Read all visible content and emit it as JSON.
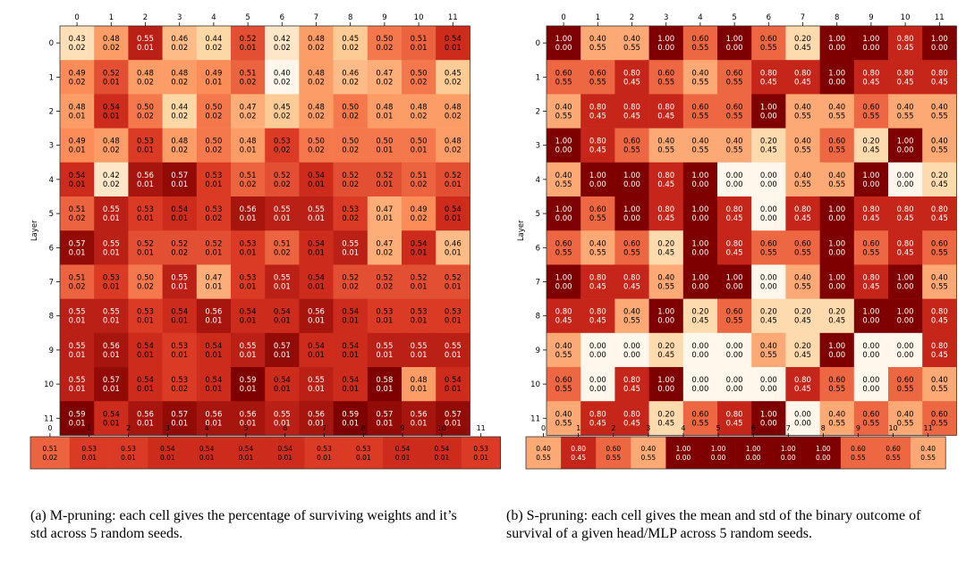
{
  "captions": {
    "a": "(a) M-pruning: each cell gives the percentage of surviving weights and it’s std across 5 random seeds.",
    "b": "(b) S-pruning: each cell gives the mean and std of the binary outcome of survival of a given head/MLP across 5 random seeds."
  },
  "chart_data": [
    {
      "type": "heatmap",
      "panel": "a",
      "ylabel": "Layer",
      "x_ticks": [
        "0",
        "1",
        "2",
        "3",
        "4",
        "5",
        "6",
        "7",
        "8",
        "9",
        "10",
        "11"
      ],
      "y_ticks": [
        "0",
        "1",
        "2",
        "3",
        "4",
        "5",
        "6",
        "7",
        "8",
        "9",
        "10",
        "11"
      ],
      "color_range": [
        0.4,
        0.58
      ],
      "mean": [
        [
          0.43,
          0.48,
          0.55,
          0.46,
          0.44,
          0.52,
          0.42,
          0.48,
          0.45,
          0.5,
          0.51,
          0.54
        ],
        [
          0.49,
          0.52,
          0.48,
          0.48,
          0.49,
          0.51,
          0.4,
          0.48,
          0.46,
          0.47,
          0.5,
          0.45
        ],
        [
          0.48,
          0.54,
          0.5,
          0.44,
          0.5,
          0.47,
          0.45,
          0.48,
          0.5,
          0.48,
          0.48,
          0.48
        ],
        [
          0.49,
          0.48,
          0.53,
          0.48,
          0.5,
          0.48,
          0.53,
          0.5,
          0.5,
          0.5,
          0.5,
          0.48
        ],
        [
          0.54,
          0.42,
          0.56,
          0.57,
          0.53,
          0.51,
          0.52,
          0.54,
          0.52,
          0.52,
          0.51,
          0.52
        ],
        [
          0.51,
          0.55,
          0.53,
          0.54,
          0.53,
          0.56,
          0.55,
          0.55,
          0.53,
          0.47,
          0.49,
          0.54
        ],
        [
          0.57,
          0.55,
          0.52,
          0.52,
          0.52,
          0.53,
          0.51,
          0.54,
          0.55,
          0.47,
          0.54,
          0.46
        ],
        [
          0.51,
          0.53,
          0.5,
          0.55,
          0.47,
          0.53,
          0.55,
          0.54,
          0.52,
          0.52,
          0.52,
          0.52
        ],
        [
          0.55,
          0.55,
          0.53,
          0.54,
          0.56,
          0.54,
          0.54,
          0.56,
          0.54,
          0.53,
          0.53,
          0.53
        ],
        [
          0.55,
          0.56,
          0.54,
          0.53,
          0.54,
          0.55,
          0.57,
          0.54,
          0.54,
          0.55,
          0.55,
          0.55
        ],
        [
          0.55,
          0.57,
          0.54,
          0.53,
          0.54,
          0.59,
          0.54,
          0.55,
          0.54,
          0.58,
          0.48,
          0.54
        ],
        [
          0.59,
          0.54,
          0.56,
          0.57,
          0.56,
          0.56,
          0.55,
          0.56,
          0.59,
          0.57,
          0.56,
          0.57
        ]
      ],
      "std": [
        [
          0.02,
          0.02,
          0.01,
          0.02,
          0.02,
          0.01,
          0.02,
          0.02,
          0.02,
          0.02,
          0.01,
          0.01
        ],
        [
          0.02,
          0.01,
          0.02,
          0.02,
          0.01,
          0.02,
          0.02,
          0.02,
          0.02,
          0.02,
          0.02,
          0.02
        ],
        [
          0.01,
          0.01,
          0.02,
          0.02,
          0.02,
          0.02,
          0.02,
          0.02,
          0.02,
          0.01,
          0.02,
          0.02
        ],
        [
          0.01,
          0.02,
          0.01,
          0.02,
          0.02,
          0.01,
          0.02,
          0.02,
          0.02,
          0.01,
          0.01,
          0.02
        ],
        [
          0.01,
          0.02,
          0.01,
          0.01,
          0.01,
          0.02,
          0.02,
          0.01,
          0.02,
          0.01,
          0.02,
          0.01
        ],
        [
          0.02,
          0.01,
          0.01,
          0.01,
          0.02,
          0.01,
          0.01,
          0.01,
          0.02,
          0.01,
          0.02,
          0.01
        ],
        [
          0.01,
          0.01,
          0.01,
          0.02,
          0.01,
          0.01,
          0.02,
          0.01,
          0.01,
          0.02,
          0.01,
          0.01
        ],
        [
          0.02,
          0.01,
          0.02,
          0.01,
          0.01,
          0.01,
          0.01,
          0.01,
          0.02,
          0.02,
          0.01,
          0.01
        ],
        [
          0.01,
          0.01,
          0.01,
          0.01,
          0.01,
          0.01,
          0.01,
          0.01,
          0.01,
          0.01,
          0.01,
          0.01
        ],
        [
          0.01,
          0.01,
          0.01,
          0.01,
          0.01,
          0.01,
          0.01,
          0.01,
          0.01,
          0.01,
          0.01,
          0.01
        ],
        [
          0.01,
          0.01,
          0.01,
          0.02,
          0.01,
          0.01,
          0.01,
          0.01,
          0.01,
          0.01,
          0.01,
          0.01
        ],
        [
          0.01,
          0.01,
          0.01,
          0.01,
          0.01,
          0.01,
          0.01,
          0.01,
          0.01,
          0.01,
          0.01,
          0.01
        ]
      ],
      "mlp_row": {
        "x_ticks": [
          "0",
          "1",
          "2",
          "3",
          "4",
          "5",
          "6",
          "7",
          "8",
          "9",
          "10",
          "11"
        ],
        "mean": [
          0.51,
          0.53,
          0.53,
          0.54,
          0.54,
          0.54,
          0.54,
          0.53,
          0.53,
          0.54,
          0.54,
          0.53
        ],
        "std": [
          0.02,
          0.01,
          0.01,
          0.01,
          0.01,
          0.01,
          0.01,
          0.01,
          0.01,
          0.01,
          0.01,
          0.01
        ]
      }
    },
    {
      "type": "heatmap",
      "panel": "b",
      "ylabel": "Layer",
      "x_ticks": [
        "0",
        "1",
        "2",
        "3",
        "4",
        "5",
        "6",
        "7",
        "8",
        "9",
        "10",
        "11"
      ],
      "y_ticks": [
        "0",
        "1",
        "2",
        "3",
        "4",
        "5",
        "6",
        "7",
        "8",
        "9",
        "10",
        "11"
      ],
      "color_range": [
        0.0,
        1.0
      ],
      "mean": [
        [
          1.0,
          0.4,
          0.4,
          1.0,
          0.6,
          1.0,
          0.6,
          0.2,
          1.0,
          1.0,
          0.8,
          1.0
        ],
        [
          0.6,
          0.6,
          0.8,
          0.6,
          0.4,
          0.6,
          0.8,
          0.8,
          1.0,
          0.8,
          0.8,
          0.8
        ],
        [
          0.4,
          0.8,
          0.8,
          0.8,
          0.6,
          0.6,
          1.0,
          0.4,
          0.4,
          0.6,
          0.4,
          0.4
        ],
        [
          1.0,
          0.8,
          0.6,
          0.4,
          0.4,
          0.4,
          0.2,
          0.4,
          0.6,
          0.2,
          1.0,
          0.4
        ],
        [
          0.4,
          1.0,
          1.0,
          0.8,
          1.0,
          0.0,
          0.0,
          0.4,
          0.4,
          1.0,
          0.0,
          0.2
        ],
        [
          1.0,
          0.6,
          1.0,
          0.8,
          1.0,
          0.8,
          0.0,
          0.8,
          1.0,
          0.8,
          0.8,
          0.8
        ],
        [
          0.6,
          0.4,
          0.6,
          0.2,
          1.0,
          0.8,
          0.6,
          0.6,
          1.0,
          0.6,
          0.8,
          0.6
        ],
        [
          1.0,
          0.8,
          0.8,
          0.4,
          1.0,
          1.0,
          0.0,
          0.4,
          1.0,
          0.8,
          1.0,
          0.4
        ],
        [
          0.8,
          0.8,
          0.4,
          1.0,
          0.2,
          0.6,
          0.2,
          0.2,
          0.2,
          1.0,
          1.0,
          0.8
        ],
        [
          0.4,
          0.0,
          0.0,
          0.2,
          0.0,
          0.0,
          0.4,
          0.2,
          1.0,
          0.0,
          0.0,
          0.8
        ],
        [
          0.6,
          0.0,
          0.8,
          1.0,
          0.0,
          0.0,
          0.0,
          0.8,
          0.6,
          0.0,
          0.6,
          0.4
        ],
        [
          0.4,
          0.8,
          0.8,
          0.2,
          0.6,
          0.8,
          1.0,
          0.0,
          0.4,
          0.6,
          0.4,
          0.6
        ]
      ],
      "std": [
        [
          0.0,
          0.55,
          0.55,
          0.0,
          0.55,
          0.0,
          0.55,
          0.45,
          0.0,
          0.0,
          0.45,
          0.0
        ],
        [
          0.55,
          0.55,
          0.45,
          0.55,
          0.55,
          0.55,
          0.45,
          0.45,
          0.0,
          0.45,
          0.45,
          0.45
        ],
        [
          0.55,
          0.45,
          0.45,
          0.45,
          0.55,
          0.55,
          0.0,
          0.55,
          0.55,
          0.55,
          0.55,
          0.55
        ],
        [
          0.0,
          0.45,
          0.55,
          0.55,
          0.55,
          0.55,
          0.45,
          0.55,
          0.55,
          0.45,
          0.0,
          0.55
        ],
        [
          0.55,
          0.0,
          0.0,
          0.45,
          0.0,
          0.0,
          0.0,
          0.55,
          0.55,
          0.0,
          0.0,
          0.45
        ],
        [
          0.0,
          0.55,
          0.0,
          0.45,
          0.0,
          0.45,
          0.0,
          0.45,
          0.0,
          0.45,
          0.45,
          0.45
        ],
        [
          0.55,
          0.55,
          0.55,
          0.45,
          0.0,
          0.45,
          0.55,
          0.55,
          0.0,
          0.55,
          0.45,
          0.55
        ],
        [
          0.0,
          0.45,
          0.45,
          0.55,
          0.0,
          0.0,
          0.0,
          0.55,
          0.0,
          0.45,
          0.0,
          0.55
        ],
        [
          0.45,
          0.45,
          0.55,
          0.0,
          0.45,
          0.55,
          0.45,
          0.45,
          0.45,
          0.0,
          0.0,
          0.45
        ],
        [
          0.55,
          0.0,
          0.0,
          0.45,
          0.0,
          0.0,
          0.55,
          0.45,
          0.0,
          0.0,
          0.0,
          0.45
        ],
        [
          0.55,
          0.0,
          0.45,
          0.0,
          0.0,
          0.0,
          0.0,
          0.45,
          0.55,
          0.0,
          0.55,
          0.55
        ],
        [
          0.55,
          0.45,
          0.45,
          0.45,
          0.55,
          0.45,
          0.0,
          0.0,
          0.55,
          0.55,
          0.55,
          0.55
        ]
      ],
      "mlp_row": {
        "x_ticks": [
          "0",
          "1",
          "2",
          "3",
          "4",
          "5",
          "6",
          "7",
          "8",
          "9",
          "10",
          "11"
        ],
        "mean": [
          0.4,
          0.8,
          0.6,
          0.4,
          1.0,
          1.0,
          1.0,
          1.0,
          1.0,
          0.6,
          0.6,
          0.4
        ],
        "std": [
          0.55,
          0.45,
          0.55,
          0.55,
          0.0,
          0.0,
          0.0,
          0.0,
          0.0,
          0.55,
          0.55,
          0.55
        ]
      }
    }
  ]
}
